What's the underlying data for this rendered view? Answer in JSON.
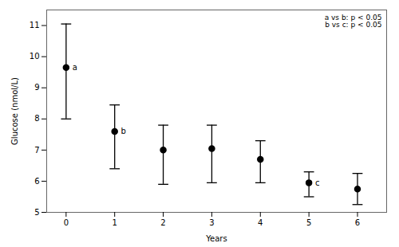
{
  "chart_data": {
    "type": "scatter",
    "x": [
      0,
      1,
      2,
      3,
      4,
      5,
      6
    ],
    "values": [
      9.65,
      7.6,
      7.0,
      7.05,
      6.7,
      5.95,
      5.75
    ],
    "error_upper": [
      1.4,
      0.85,
      0.8,
      0.75,
      0.6,
      0.35,
      0.5
    ],
    "error_lower": [
      1.65,
      1.2,
      1.1,
      1.1,
      0.75,
      0.45,
      0.5
    ],
    "color": "#000000",
    "marker": "circle",
    "xlabel": "Years",
    "ylabel": "Glucose (nmol/L)",
    "xlim": [
      -0.4,
      6.6
    ],
    "ylim": [
      5.0,
      11.5
    ],
    "xticks": [
      0,
      1,
      2,
      3,
      4,
      5,
      6
    ],
    "yticks": [
      5,
      6,
      7,
      8,
      9,
      10,
      11
    ],
    "annotations": [
      {
        "x": 0.13,
        "y": 9.65,
        "text": "a"
      },
      {
        "x": 1.13,
        "y": 7.6,
        "text": "b"
      },
      {
        "x": 5.13,
        "y": 5.95,
        "text": "c"
      },
      {
        "text": "a vs b: p < 0.05"
      },
      {
        "text": "b vs c: p < 0.05"
      }
    ]
  }
}
